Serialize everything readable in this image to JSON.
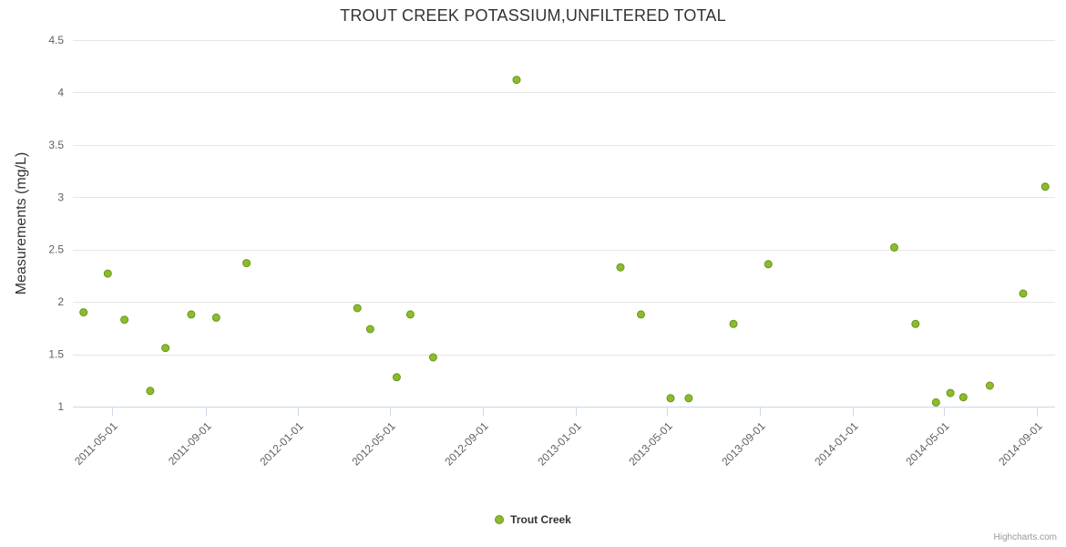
{
  "chart_data": {
    "type": "scatter",
    "title": "TROUT CREEK POTASSIUM,UNFILTERED TOTAL",
    "ylabel": "Measurements (mg/L)",
    "xlabel": "",
    "series_name": "Trout Creek",
    "credit": "Highcharts.com",
    "legend_position": "bottom-center",
    "grid": "horizontal-only",
    "ylim": [
      1,
      4.5
    ],
    "y_ticks": [
      1,
      1.5,
      2,
      2.5,
      3,
      3.5,
      4,
      4.5
    ],
    "xlim": [
      "2011-03-10",
      "2014-09-25"
    ],
    "x_ticks": [
      "2011-05-01",
      "2011-09-01",
      "2012-01-01",
      "2012-05-01",
      "2012-09-01",
      "2013-01-01",
      "2013-05-01",
      "2013-09-01",
      "2014-01-01",
      "2014-05-01",
      "2014-09-01"
    ],
    "points": [
      {
        "date": "2011-03-24",
        "value": 1.9
      },
      {
        "date": "2011-04-25",
        "value": 2.27
      },
      {
        "date": "2011-05-17",
        "value": 1.83
      },
      {
        "date": "2011-06-20",
        "value": 1.15
      },
      {
        "date": "2011-07-10",
        "value": 1.56
      },
      {
        "date": "2011-08-13",
        "value": 1.88
      },
      {
        "date": "2011-09-15",
        "value": 1.85
      },
      {
        "date": "2011-10-25",
        "value": 2.37
      },
      {
        "date": "2012-03-19",
        "value": 1.94
      },
      {
        "date": "2012-04-05",
        "value": 1.74
      },
      {
        "date": "2012-05-10",
        "value": 1.28
      },
      {
        "date": "2012-05-28",
        "value": 1.88
      },
      {
        "date": "2012-06-27",
        "value": 1.47
      },
      {
        "date": "2012-10-15",
        "value": 4.12
      },
      {
        "date": "2013-03-01",
        "value": 2.33
      },
      {
        "date": "2013-03-28",
        "value": 1.88
      },
      {
        "date": "2013-05-06",
        "value": 1.08
      },
      {
        "date": "2013-05-30",
        "value": 1.08
      },
      {
        "date": "2013-07-28",
        "value": 1.79
      },
      {
        "date": "2013-09-12",
        "value": 2.36
      },
      {
        "date": "2014-02-25",
        "value": 2.52
      },
      {
        "date": "2014-03-25",
        "value": 1.79
      },
      {
        "date": "2014-04-21",
        "value": 1.04
      },
      {
        "date": "2014-05-10",
        "value": 1.13
      },
      {
        "date": "2014-05-27",
        "value": 1.09
      },
      {
        "date": "2014-07-01",
        "value": 1.2
      },
      {
        "date": "2014-08-14",
        "value": 2.08
      },
      {
        "date": "2014-09-12",
        "value": 3.1
      }
    ],
    "colors": {
      "point_fill": "#8bbd2a",
      "point_stroke": "#6a9420",
      "grid": "#e6e6e6",
      "axis_line": "#ccd6eb",
      "tick_mark": "#ccd6eb",
      "tick_label": "#606060",
      "title_text": "#333333",
      "legend_text": "#333333",
      "credit_text": "#999999"
    }
  }
}
